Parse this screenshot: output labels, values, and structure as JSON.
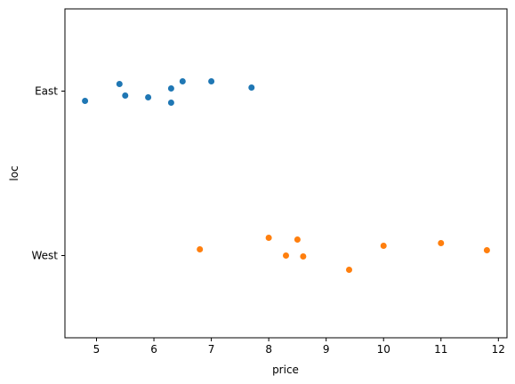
{
  "chart_data": {
    "type": "strip",
    "x_label": "price",
    "y_label": "loc",
    "categories": [
      "East",
      "West"
    ],
    "series": [
      {
        "color": "#1f77b4",
        "values": [
          4.8,
          5.4,
          5.5,
          5.9,
          6.3,
          6.3,
          6.5,
          7.0,
          7.7
        ]
      },
      {
        "color": "#ff7f0e",
        "values": [
          6.8,
          8.0,
          8.3,
          8.5,
          8.6,
          9.4,
          10.0,
          11.0,
          11.8
        ]
      }
    ],
    "xlim": [
      4.45,
      12.15
    ],
    "xticks": [
      5,
      6,
      7,
      8,
      9,
      10,
      11,
      12
    ]
  }
}
